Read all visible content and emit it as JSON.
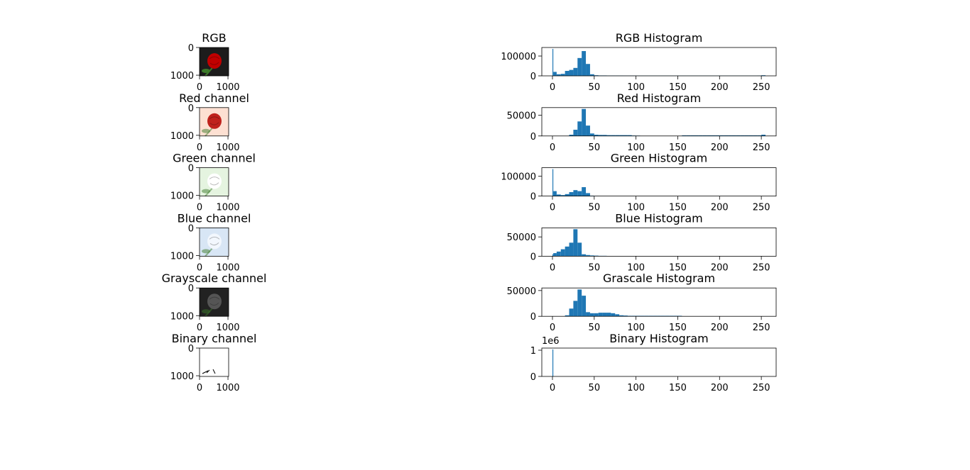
{
  "chart_data": [
    {
      "type": "image",
      "title": "RGB",
      "background": "#1c1c1c",
      "color": "#c00000",
      "xlim": [
        0,
        1024
      ],
      "ylim": [
        1024,
        0
      ],
      "xticks": [
        0,
        1000
      ],
      "yticks": [
        0,
        1000
      ]
    },
    {
      "type": "image",
      "title": "Red channel",
      "background": "#fde0d2",
      "color": "#c0221c",
      "xlim": [
        0,
        1024
      ],
      "ylim": [
        1024,
        0
      ],
      "xticks": [
        0,
        1000
      ],
      "yticks": [
        0,
        1000
      ]
    },
    {
      "type": "image",
      "title": "Green channel",
      "background": "#e5f4e0",
      "color": "#ffffff",
      "xlim": [
        0,
        1024
      ],
      "ylim": [
        1024,
        0
      ],
      "xticks": [
        0,
        1000
      ],
      "yticks": [
        0,
        1000
      ]
    },
    {
      "type": "image",
      "title": "Blue channel",
      "background": "#d8e6f5",
      "color": "#f2f7fd",
      "xlim": [
        0,
        1024
      ],
      "ylim": [
        1024,
        0
      ],
      "xticks": [
        0,
        1000
      ],
      "yticks": [
        0,
        1000
      ]
    },
    {
      "type": "image",
      "title": "Grayscale channel",
      "background": "#222222",
      "color": "#555555",
      "xlim": [
        0,
        1024
      ],
      "ylim": [
        1024,
        0
      ],
      "xticks": [
        0,
        1000
      ],
      "yticks": [
        0,
        1000
      ]
    },
    {
      "type": "image",
      "title": "Binary channel",
      "background": "#ffffff",
      "color": "#000000",
      "xlim": [
        0,
        1024
      ],
      "ylim": [
        1024,
        0
      ],
      "xticks": [
        0,
        1000
      ],
      "yticks": [
        0,
        1000
      ]
    },
    {
      "type": "histogram",
      "title": "RGB Histogram",
      "color": "#1f77b4",
      "bins": [
        0,
        1,
        5,
        10,
        15,
        20,
        25,
        30,
        35,
        40,
        45,
        50,
        55,
        60,
        65,
        70,
        75,
        80,
        85,
        90,
        95,
        100,
        105,
        110,
        115,
        120,
        125,
        130,
        135,
        140,
        145,
        150,
        155,
        160,
        165,
        170,
        175,
        180,
        185,
        190,
        195,
        200,
        205,
        210,
        215,
        220,
        225,
        230,
        235,
        240,
        245,
        250,
        255
      ],
      "counts": [
        136000,
        20000,
        8000,
        10000,
        25000,
        30000,
        40000,
        90000,
        125000,
        60000,
        8000,
        3000,
        2000,
        2000,
        1500,
        1500,
        1500,
        1500,
        1200,
        1200,
        1200,
        1000,
        1000,
        1000,
        1000,
        1000,
        1000,
        1000,
        1000,
        1000,
        1000,
        1000,
        1000,
        1000,
        1000,
        1000,
        1000,
        1000,
        1000,
        1000,
        1000,
        1000,
        1000,
        1000,
        1000,
        1000,
        1000,
        1000,
        1000,
        1000,
        1500,
        3000
      ],
      "xlim": [
        -12.75,
        267.75
      ],
      "ylim": [
        0,
        143000
      ],
      "xticks": [
        0,
        50,
        100,
        150,
        200,
        250
      ],
      "yticks": [
        0,
        100000
      ]
    },
    {
      "type": "histogram",
      "title": "Red Histogram",
      "color": "#1f77b4",
      "bins": [
        0,
        1,
        5,
        10,
        15,
        20,
        25,
        30,
        35,
        40,
        45,
        50,
        55,
        60,
        65,
        70,
        75,
        80,
        85,
        90,
        95,
        100,
        105,
        110,
        115,
        120,
        125,
        130,
        135,
        140,
        145,
        150,
        155,
        160,
        165,
        170,
        175,
        180,
        185,
        190,
        195,
        200,
        205,
        210,
        215,
        220,
        225,
        230,
        235,
        240,
        245,
        250,
        255
      ],
      "counts": [
        0,
        0,
        0,
        0,
        500,
        3000,
        15000,
        35000,
        65000,
        25000,
        6000,
        3000,
        2500,
        2500,
        2000,
        2000,
        2000,
        2000,
        2000,
        2000,
        1000,
        800,
        500,
        500,
        500,
        500,
        500,
        500,
        500,
        500,
        500,
        500,
        1500,
        1500,
        1500,
        1500,
        1500,
        1500,
        1500,
        1500,
        1500,
        1500,
        1500,
        1500,
        1500,
        1500,
        1500,
        1500,
        1500,
        1500,
        1500,
        3000
      ],
      "xlim": [
        -12.75,
        267.75
      ],
      "ylim": [
        0,
        68250
      ],
      "xticks": [
        0,
        50,
        100,
        150,
        200,
        250
      ],
      "yticks": [
        0,
        50000
      ]
    },
    {
      "type": "histogram",
      "title": "Green Histogram",
      "color": "#1f77b4",
      "bins": [
        0,
        1,
        5,
        10,
        15,
        20,
        25,
        30,
        35,
        40,
        45,
        50,
        55,
        60,
        65,
        70,
        75,
        80,
        85,
        90,
        95,
        100,
        105,
        110,
        115,
        120,
        125,
        130,
        135,
        140,
        145,
        150,
        155,
        160,
        165,
        170,
        175,
        180,
        185,
        190,
        195,
        200,
        205,
        210,
        215,
        220,
        225,
        230,
        235,
        240,
        245,
        250,
        255
      ],
      "counts": [
        136000,
        25000,
        8000,
        5000,
        10000,
        20000,
        30000,
        25000,
        45000,
        15000,
        2000,
        500,
        300,
        300,
        300,
        300,
        300,
        300,
        300,
        300,
        300,
        300,
        300,
        300,
        300,
        300,
        300,
        300,
        300,
        300,
        300,
        300,
        300,
        300,
        300,
        300,
        300,
        300,
        300,
        300,
        300,
        300,
        300,
        300,
        300,
        300,
        300,
        300,
        300,
        300,
        300,
        300
      ],
      "xlim": [
        -12.75,
        267.75
      ],
      "ylim": [
        0,
        143000
      ],
      "xticks": [
        0,
        50,
        100,
        150,
        200,
        250
      ],
      "yticks": [
        0,
        100000
      ]
    },
    {
      "type": "histogram",
      "title": "Blue Histogram",
      "color": "#1f77b4",
      "bins": [
        0,
        1,
        5,
        10,
        15,
        20,
        25,
        30,
        35,
        40,
        45,
        50,
        55,
        60,
        65,
        70,
        75,
        80,
        85,
        90,
        95,
        100,
        105,
        110,
        115,
        120,
        125,
        130,
        135,
        140,
        145,
        150,
        155,
        160,
        165,
        170,
        175,
        180,
        185,
        190,
        195,
        200,
        205,
        210,
        215,
        220,
        225,
        230,
        235,
        240,
        245,
        250,
        255
      ],
      "counts": [
        5000,
        8000,
        12000,
        18000,
        25000,
        35000,
        70000,
        35000,
        5000,
        3000,
        2000,
        1500,
        1000,
        1000,
        200,
        200,
        200,
        200,
        200,
        200,
        200,
        200,
        200,
        200,
        200,
        200,
        200,
        200,
        200,
        200,
        200,
        200,
        200,
        200,
        200,
        200,
        200,
        200,
        200,
        200,
        200,
        200,
        200,
        200,
        200,
        200,
        200,
        200,
        200,
        200,
        200,
        200
      ],
      "xlim": [
        -12.75,
        267.75
      ],
      "ylim": [
        0,
        73500
      ],
      "xticks": [
        0,
        50,
        100,
        150,
        200,
        250
      ],
      "yticks": [
        0,
        50000
      ]
    },
    {
      "type": "histogram",
      "title": "Grascale Histogram",
      "color": "#1f77b4",
      "bins": [
        0,
        1,
        5,
        10,
        15,
        20,
        25,
        30,
        35,
        40,
        45,
        50,
        55,
        60,
        65,
        70,
        75,
        80,
        85,
        90,
        95,
        100,
        105,
        110,
        115,
        120,
        125,
        130,
        135,
        140,
        145,
        150,
        155,
        160,
        165,
        170,
        175,
        180,
        185,
        190,
        195,
        200,
        205,
        210,
        215,
        220,
        225,
        230,
        235,
        240,
        245,
        250,
        255
      ],
      "counts": [
        0,
        0,
        0,
        0,
        2000,
        15000,
        30000,
        52000,
        40000,
        8000,
        6000,
        6000,
        7000,
        7000,
        7000,
        6000,
        4000,
        2000,
        1500,
        1000,
        1000,
        1000,
        1000,
        1000,
        1000,
        1000,
        1000,
        1000,
        1000,
        1000,
        1000,
        1000,
        0,
        0,
        0,
        0,
        0,
        0,
        0,
        0,
        0,
        0,
        0,
        0,
        0,
        0,
        0,
        0,
        0,
        0,
        0,
        0
      ],
      "xlim": [
        -12.75,
        267.75
      ],
      "ylim": [
        0,
        55000
      ],
      "xticks": [
        0,
        50,
        100,
        150,
        200,
        250
      ],
      "yticks": [
        0,
        50000
      ]
    },
    {
      "type": "histogram",
      "title": "Binary Histogram",
      "color": "#1f77b4",
      "offset_label": "1e6",
      "bins": [
        0,
        1,
        5,
        10,
        15,
        20,
        25,
        30,
        35,
        40,
        45,
        50,
        55,
        60,
        65,
        70,
        75,
        80,
        85,
        90,
        95,
        100,
        105,
        110,
        115,
        120,
        125,
        130,
        135,
        140,
        145,
        150,
        155,
        160,
        165,
        170,
        175,
        180,
        185,
        190,
        195,
        200,
        205,
        210,
        215,
        220,
        225,
        230,
        235,
        240,
        245,
        250,
        255
      ],
      "counts": [
        1030000,
        0,
        0,
        0,
        0,
        0,
        0,
        0,
        0,
        0,
        0,
        0,
        0,
        0,
        0,
        0,
        0,
        0,
        0,
        0,
        0,
        0,
        0,
        0,
        0,
        0,
        0,
        0,
        0,
        0,
        0,
        0,
        0,
        0,
        0,
        0,
        0,
        0,
        0,
        0,
        0,
        0,
        0,
        0,
        0,
        0,
        0,
        0,
        0,
        0,
        0,
        3000
      ],
      "xlim": [
        -12.75,
        267.75
      ],
      "ylim": [
        0,
        1081500
      ],
      "xticks": [
        0,
        50,
        100,
        150,
        200,
        250
      ],
      "yticks": [
        0,
        {
          "value": 1000000,
          "label": "1"
        }
      ]
    }
  ]
}
